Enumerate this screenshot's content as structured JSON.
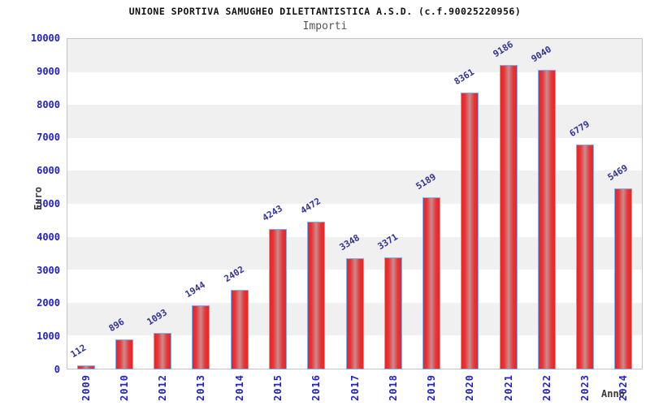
{
  "header": {
    "title": "UNIONE SPORTIVA SAMUGHEO DILETTANTISTICA A.S.D. (c.f.90025220956)",
    "subtitle": "Importi"
  },
  "chart_data": {
    "type": "bar",
    "title": "UNIONE SPORTIVA SAMUGHEO DILETTANTISTICA A.S.D. (c.f.90025220956)",
    "subtitle": "Importi",
    "xlabel": "Anno",
    "ylabel": "Euro",
    "categories": [
      "2009",
      "2010",
      "2012",
      "2013",
      "2014",
      "2015",
      "2016",
      "2017",
      "2018",
      "2019",
      "2020",
      "2021",
      "2022",
      "2023",
      "2024"
    ],
    "values": [
      112,
      896,
      1093,
      1944,
      2402,
      4243,
      4472,
      3348,
      3371,
      5189,
      8361,
      9186,
      9040,
      6779,
      5469
    ],
    "ylim": [
      0,
      10000
    ],
    "ytick_step": 1000,
    "grid": "alternating-horizontal-bands",
    "legend": "none",
    "colors": {
      "tick_label": "#2121cd",
      "bar_value_label": "#32329b",
      "bar_fill_edge": "#e92525",
      "bar_fill_mid": "#e63538",
      "bar_fill_highlight": "#c98c8e",
      "bar_border": "#7ab1f2",
      "band_gray": "#f0f0f0",
      "band_white": "#ffffff",
      "plot_border": "#c4c4c4",
      "title_color": "#111111",
      "subtitle_color": "#555555",
      "axis_title_color": "#3a3a3a"
    }
  }
}
